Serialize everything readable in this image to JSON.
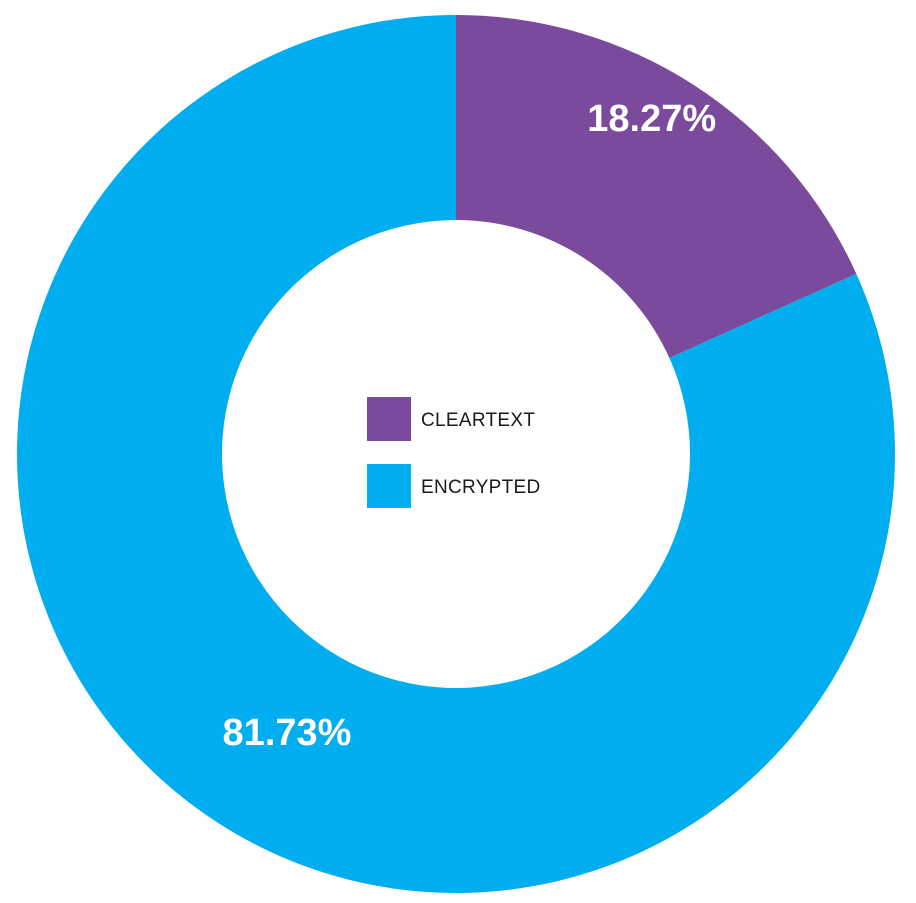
{
  "chart_data": {
    "type": "pie",
    "donut": true,
    "categories": [
      "CLEARTEXT",
      "ENCRYPTED"
    ],
    "values": [
      18.27,
      81.73
    ],
    "value_labels": [
      "18.27%",
      "81.73%"
    ],
    "colors": [
      "#7b4a9c",
      "#00adee"
    ],
    "start_angle": "12 o'clock",
    "direction": "clockwise",
    "legend": {
      "placement": "center",
      "entries": [
        {
          "label": "CLEARTEXT",
          "color": "#7b4a9c"
        },
        {
          "label": "ENCRYPTED",
          "color": "#00adee"
        }
      ]
    }
  }
}
